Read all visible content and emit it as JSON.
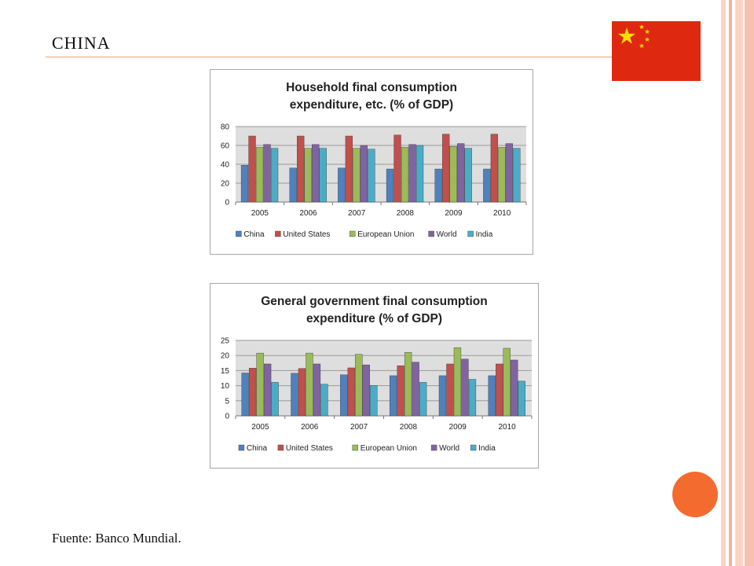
{
  "slide": {
    "title": "CHINA",
    "footer": "Fuente: Banco Mundial."
  },
  "colors": {
    "accent_rule": "#e8a07a",
    "circle": "#f36b2f",
    "stripe_light": "#fbd4c4",
    "stripe_mid": "#f3b29a",
    "flag_red": "#de2910",
    "flag_star": "#ffde00",
    "series": [
      "#4f81bd",
      "#c0504d",
      "#9bbb59",
      "#8064a2",
      "#4bacc6"
    ]
  },
  "chart_data": [
    {
      "type": "bar",
      "title_lines": [
        "Household final consumption",
        "expenditure, etc. (% of GDP)"
      ],
      "categories": [
        "2005",
        "2006",
        "2007",
        "2008",
        "2009",
        "2010"
      ],
      "ylim": [
        0,
        80
      ],
      "yticks": [
        "0",
        "20",
        "40",
        "60",
        "80"
      ],
      "grid": true,
      "legend_position": "bottom",
      "series": [
        {
          "name": "China",
          "values": [
            39,
            36,
            36,
            35,
            35,
            35
          ]
        },
        {
          "name": "United States",
          "values": [
            70,
            70,
            70,
            71,
            72,
            72
          ]
        },
        {
          "name": "European Union",
          "values": [
            58,
            57,
            57,
            58,
            59,
            58
          ]
        },
        {
          "name": "World",
          "values": [
            61,
            61,
            60,
            61,
            62,
            62
          ]
        },
        {
          "name": "India",
          "values": [
            57,
            57,
            56,
            60,
            57,
            57
          ]
        }
      ]
    },
    {
      "type": "bar",
      "title_lines": [
        "General government final consumption",
        "expenditure (% of GDP)"
      ],
      "categories": [
        "2005",
        "2006",
        "2007",
        "2008",
        "2009",
        "2010"
      ],
      "ylim": [
        0,
        25
      ],
      "yticks": [
        "0",
        "5",
        "10",
        "15",
        "20",
        "25"
      ],
      "grid": true,
      "legend_position": "bottom",
      "series": [
        {
          "name": "China",
          "values": [
            14.2,
            14.1,
            13.6,
            13.3,
            13.3,
            13.3
          ]
        },
        {
          "name": "United States",
          "values": [
            15.8,
            15.7,
            15.9,
            16.6,
            17.2,
            17.2
          ]
        },
        {
          "name": "European Union",
          "values": [
            20.8,
            20.8,
            20.4,
            21.0,
            22.6,
            22.4
          ]
        },
        {
          "name": "World",
          "values": [
            17.2,
            17.2,
            16.9,
            17.8,
            18.8,
            18.5
          ]
        },
        {
          "name": "India",
          "values": [
            11.1,
            10.5,
            10.1,
            11.1,
            12.1,
            11.5
          ]
        }
      ]
    }
  ]
}
